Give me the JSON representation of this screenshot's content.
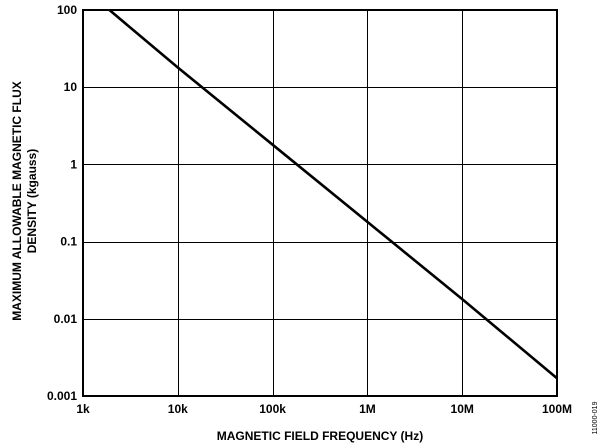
{
  "chart_data": {
    "type": "line",
    "title": "",
    "xlabel": "MAGNETIC FIELD FREQUENCY (Hz)",
    "ylabel_lines": [
      "MAXIMUM ALLOWABLE MAGNETIC FLUX",
      "DENSITY (kgauss)"
    ],
    "x_scale": "log",
    "y_scale": "log",
    "xlim": [
      1000,
      100000000
    ],
    "ylim": [
      0.001,
      100
    ],
    "grid": true,
    "x_ticks": [
      {
        "value": 1000,
        "label": "1k"
      },
      {
        "value": 10000,
        "label": "10k"
      },
      {
        "value": 100000,
        "label": "100k"
      },
      {
        "value": 1000000,
        "label": "1M"
      },
      {
        "value": 10000000,
        "label": "10M"
      },
      {
        "value": 100000000,
        "label": "100M"
      }
    ],
    "y_ticks": [
      {
        "value": 0.001,
        "label": "0.001"
      },
      {
        "value": 0.01,
        "label": "0.01"
      },
      {
        "value": 0.1,
        "label": "0.1"
      },
      {
        "value": 1,
        "label": "1"
      },
      {
        "value": 10,
        "label": "10"
      },
      {
        "value": 100,
        "label": "100"
      }
    ],
    "series": [
      {
        "x": [
          1900,
          10000,
          100000,
          1000000,
          10000000,
          100000000
        ],
        "y": [
          100,
          18,
          1.8,
          0.18,
          0.018,
          0.0017
        ]
      }
    ]
  },
  "figure_code": "11000-019"
}
